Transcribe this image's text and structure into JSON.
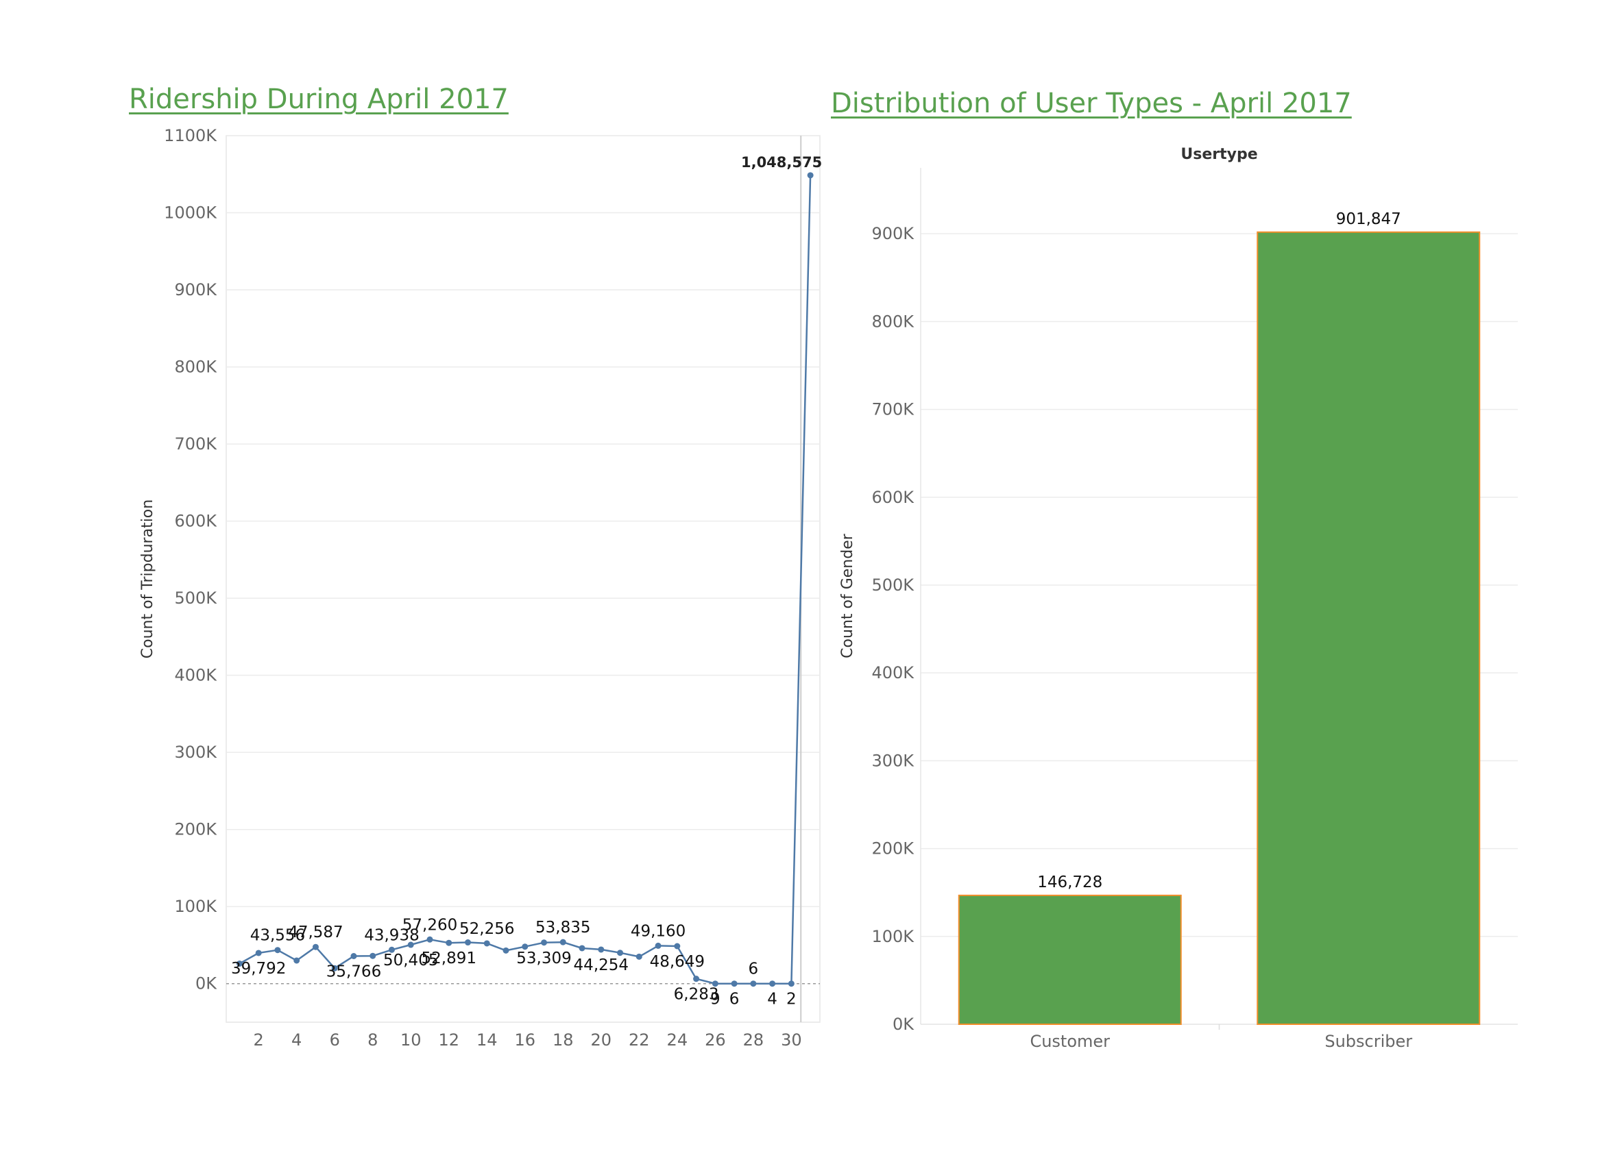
{
  "chart_data": [
    {
      "type": "line",
      "title": "Ridership During April 2017",
      "xlabel": "",
      "ylabel": "Count of Tripduration",
      "ylim": [
        -50000,
        1100000
      ],
      "xlim": [
        0.3,
        31.5
      ],
      "grid": true,
      "color": "#4e79a7",
      "x_ticks": [
        2,
        4,
        6,
        8,
        10,
        12,
        14,
        16,
        18,
        20,
        22,
        24,
        26,
        28,
        30
      ],
      "y_ticks": [
        0,
        100000,
        200000,
        300000,
        400000,
        500000,
        600000,
        700000,
        800000,
        900000,
        1000000,
        1100000
      ],
      "y_tick_labels": [
        "0K",
        "100K",
        "200K",
        "300K",
        "400K",
        "500K",
        "600K",
        "700K",
        "800K",
        "900K",
        "1000K",
        "1100K"
      ],
      "x": [
        1,
        2,
        3,
        4,
        5,
        6,
        7,
        8,
        9,
        10,
        11,
        12,
        13,
        14,
        15,
        16,
        17,
        18,
        19,
        20,
        21,
        22,
        23,
        24,
        25,
        26,
        27,
        28,
        29,
        30,
        31
      ],
      "values": [
        26000,
        39792,
        43556,
        30000,
        47587,
        20000,
        35766,
        36000,
        43938,
        50405,
        57260,
        52891,
        53500,
        52256,
        43000,
        48000,
        53309,
        53835,
        46000,
        44254,
        40000,
        35000,
        49160,
        48649,
        6283,
        9,
        6,
        6,
        4,
        2,
        1048575
      ],
      "point_labels": [
        {
          "x": 2,
          "text": "39,792",
          "pos": "below"
        },
        {
          "x": 3,
          "text": "43,556",
          "pos": "above"
        },
        {
          "x": 5,
          "text": "47,587",
          "pos": "above"
        },
        {
          "x": 7,
          "text": "35,766",
          "pos": "below"
        },
        {
          "x": 9,
          "text": "43,938",
          "pos": "above"
        },
        {
          "x": 10,
          "text": "50,405",
          "pos": "below"
        },
        {
          "x": 11,
          "text": "57,260",
          "pos": "above"
        },
        {
          "x": 12,
          "text": "52,891",
          "pos": "below"
        },
        {
          "x": 14,
          "text": "52,256",
          "pos": "above"
        },
        {
          "x": 17,
          "text": "53,309",
          "pos": "below"
        },
        {
          "x": 18,
          "text": "53,835",
          "pos": "above"
        },
        {
          "x": 20,
          "text": "44,254",
          "pos": "below"
        },
        {
          "x": 23,
          "text": "49,160",
          "pos": "above"
        },
        {
          "x": 24,
          "text": "48,649",
          "pos": "below"
        },
        {
          "x": 25,
          "text": "6,283",
          "pos": "below"
        },
        {
          "x": 26,
          "text": "9",
          "pos": "below"
        },
        {
          "x": 27,
          "text": "6",
          "pos": "below"
        },
        {
          "x": 28,
          "text": "6",
          "pos": "above"
        },
        {
          "x": 29,
          "text": "4",
          "pos": "below"
        },
        {
          "x": 30,
          "text": "2",
          "pos": "below"
        },
        {
          "x": 31,
          "text": "1,048,575",
          "pos": "above"
        }
      ]
    },
    {
      "type": "bar",
      "title": "Distribution of User Types - April 2017",
      "header": "Usertype",
      "xlabel": "",
      "ylabel": "Count of Gender",
      "categories": [
        "Customer",
        "Subscriber"
      ],
      "values": [
        146728,
        901847
      ],
      "value_labels": [
        "146,728",
        "901,847"
      ],
      "ylim": [
        0,
        975000
      ],
      "grid": true,
      "fill": "#59a14f",
      "stroke": "#f28e2b",
      "y_ticks": [
        0,
        100000,
        200000,
        300000,
        400000,
        500000,
        600000,
        700000,
        800000,
        900000
      ],
      "y_tick_labels": [
        "0K",
        "100K",
        "200K",
        "300K",
        "400K",
        "500K",
        "600K",
        "700K",
        "800K",
        "900K"
      ]
    }
  ]
}
